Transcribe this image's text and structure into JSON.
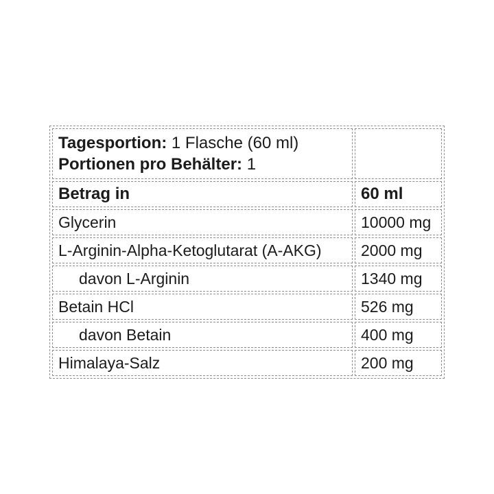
{
  "page": {
    "background": "#ffffff"
  },
  "table": {
    "serving": {
      "line1_label": "Tagesportion:",
      "line1_value": "1 Flasche (60 ml)",
      "line2_label": "Portionen pro Behälter:",
      "line2_value": "1"
    },
    "columns": {
      "name_header": "Betrag in",
      "amount_header": "60 ml"
    },
    "rows": [
      {
        "name": "Glycerin",
        "amount": "10000 mg"
      },
      {
        "name": "L-Arginin-Alpha-Ketoglutarat (A-AKG)",
        "amount": "2000 mg"
      },
      {
        "name": "davon L-Arginin",
        "amount": "1340 mg"
      },
      {
        "name": "Betain HCl",
        "amount": "526 mg"
      },
      {
        "name": "davon Betain",
        "amount": "400 mg"
      },
      {
        "name": "Himalaya-Salz",
        "amount": "200 mg"
      }
    ],
    "colors": {
      "text": "#1b1b1b",
      "border": "#8e8e8e",
      "background": "#ffffff"
    }
  }
}
